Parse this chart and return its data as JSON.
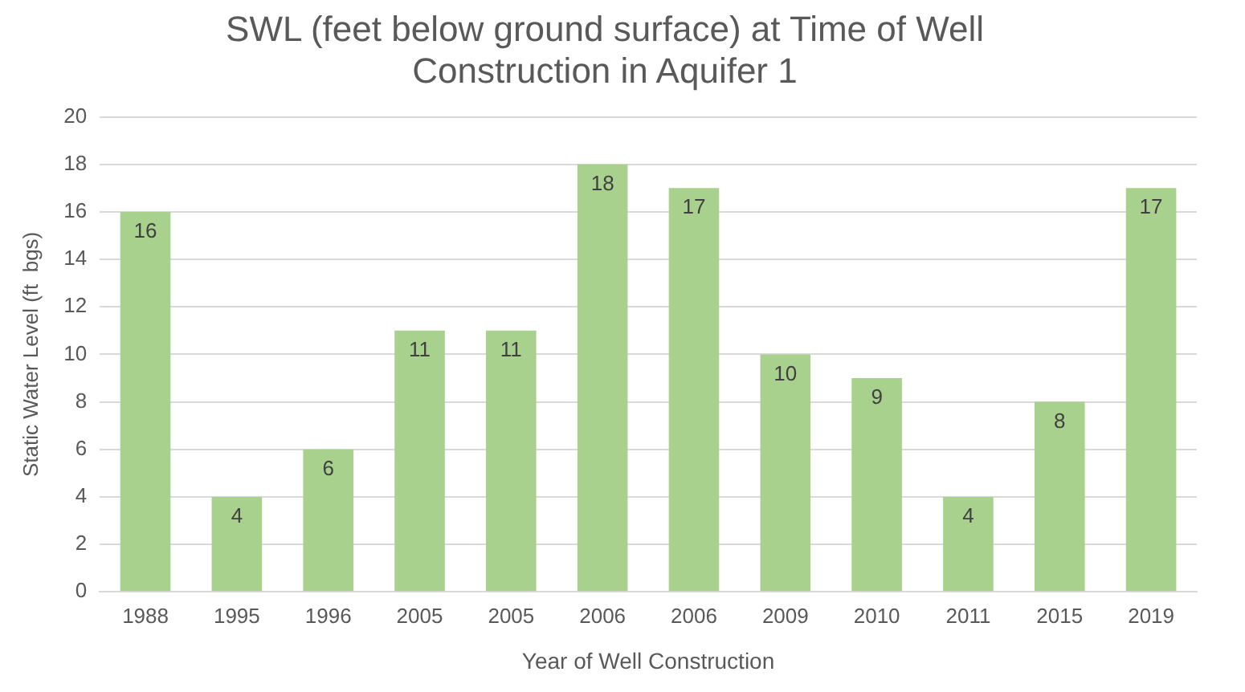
{
  "chart_data": {
    "type": "bar",
    "title": "SWL (feet below ground surface) at Time of Well Construction in Aquifer 1",
    "xlabel": "Year of Well Construction",
    "ylabel": "Static Water Level (ft  bgs)",
    "categories": [
      "1988",
      "1995",
      "1996",
      "2005",
      "2005",
      "2006",
      "2006",
      "2009",
      "2010",
      "2011",
      "2015",
      "2019"
    ],
    "values": [
      16,
      4,
      6,
      11,
      11,
      18,
      17,
      10,
      9,
      4,
      8,
      17
    ],
    "color": "#a9d18e",
    "ylim": [
      0,
      20
    ],
    "yticks": [
      0,
      2,
      4,
      6,
      8,
      10,
      12,
      14,
      16,
      18,
      20
    ],
    "grid": "y",
    "legend": false,
    "data_labels": true
  }
}
